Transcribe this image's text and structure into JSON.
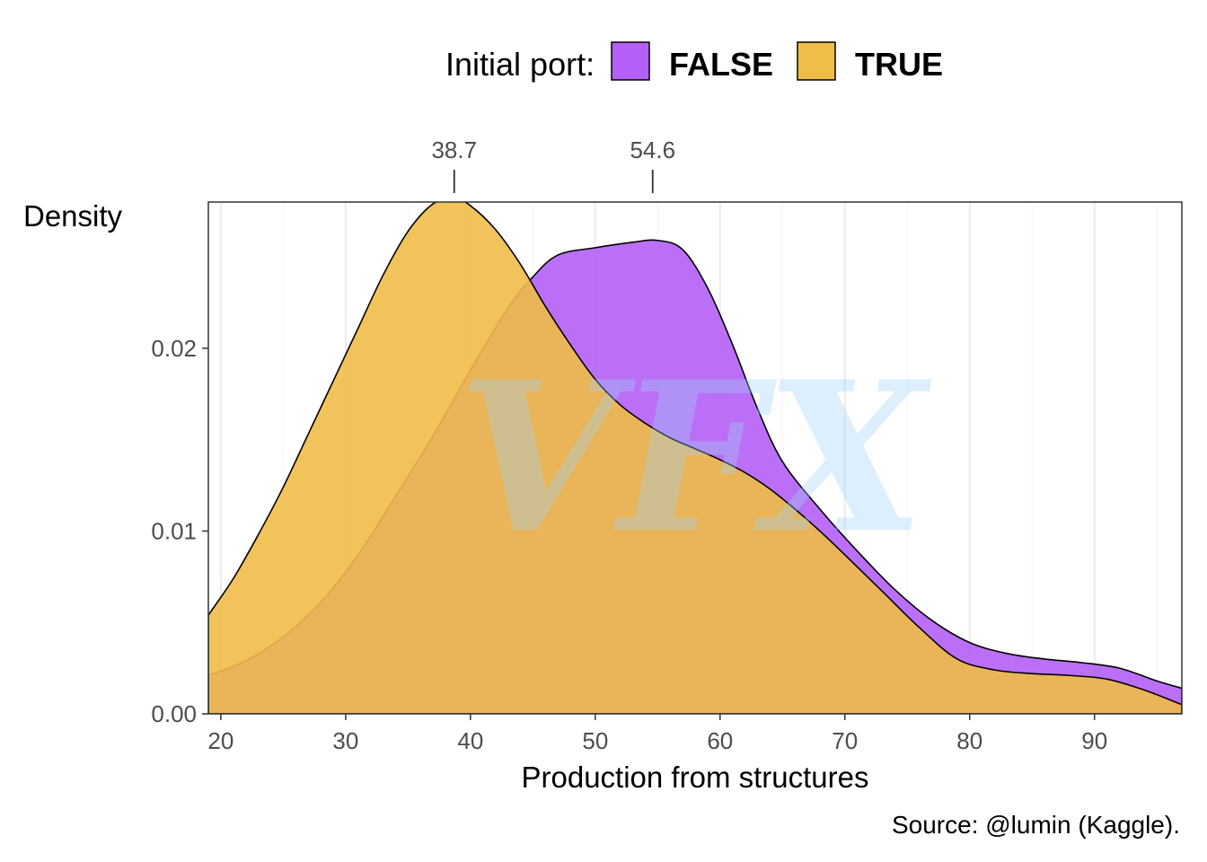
{
  "chart_data": {
    "type": "area",
    "subtype": "density",
    "title": "",
    "xlabel": "Production from structures",
    "ylabel": "Density",
    "xlim": [
      19,
      97
    ],
    "ylim": [
      0,
      0.028
    ],
    "x_ticks": [
      20,
      30,
      40,
      50,
      60,
      70,
      80,
      90
    ],
    "y_ticks": [
      0.0,
      0.01,
      0.02
    ],
    "y_tick_labels": [
      "0.00",
      "0.01",
      "0.02"
    ],
    "grid": {
      "major_x": true,
      "minor_x": true,
      "y": false
    },
    "legend": {
      "title": "Initial port:",
      "position": "top"
    },
    "peak_markers": [
      {
        "x": 38.7,
        "label": "38.7"
      },
      {
        "x": 54.6,
        "label": "54.6"
      }
    ],
    "caption": "Source: @lumin (Kaggle).",
    "watermark": "VFX",
    "series": [
      {
        "name": "FALSE",
        "color": "#b45ff5",
        "x": [
          19,
          22,
          25,
          28,
          31,
          34,
          37,
          40,
          43,
          45,
          47,
          50,
          53,
          55,
          57,
          59,
          61,
          63,
          65,
          68,
          71,
          74,
          77,
          80,
          83,
          86,
          89,
          92,
          95,
          97
        ],
        "y": [
          0.0021,
          0.0029,
          0.0042,
          0.0061,
          0.0087,
          0.0119,
          0.0152,
          0.0188,
          0.0222,
          0.0239,
          0.0251,
          0.0255,
          0.0258,
          0.0259,
          0.0254,
          0.0233,
          0.0202,
          0.0167,
          0.0138,
          0.0112,
          0.0089,
          0.0068,
          0.0051,
          0.0039,
          0.0033,
          0.003,
          0.0028,
          0.0025,
          0.0018,
          0.0014
        ]
      },
      {
        "name": "TRUE",
        "color": "#f0bd48",
        "x": [
          19,
          21,
          23,
          25,
          27,
          29,
          31,
          33,
          35,
          37,
          38.7,
          40,
          42,
          44,
          46,
          48,
          50,
          52,
          54,
          56,
          58,
          60,
          62,
          64,
          66,
          68,
          70,
          73,
          76,
          79,
          82,
          85,
          88,
          91,
          94,
          97
        ],
        "y": [
          0.0054,
          0.0074,
          0.0098,
          0.0124,
          0.0153,
          0.0182,
          0.0211,
          0.024,
          0.0264,
          0.0279,
          0.0282,
          0.0278,
          0.0265,
          0.0246,
          0.0223,
          0.0202,
          0.0183,
          0.0169,
          0.0159,
          0.0151,
          0.0145,
          0.0139,
          0.0132,
          0.0123,
          0.0112,
          0.01,
          0.0087,
          0.0067,
          0.0047,
          0.003,
          0.0024,
          0.0022,
          0.0021,
          0.0019,
          0.0013,
          0.0005
        ]
      }
    ]
  }
}
